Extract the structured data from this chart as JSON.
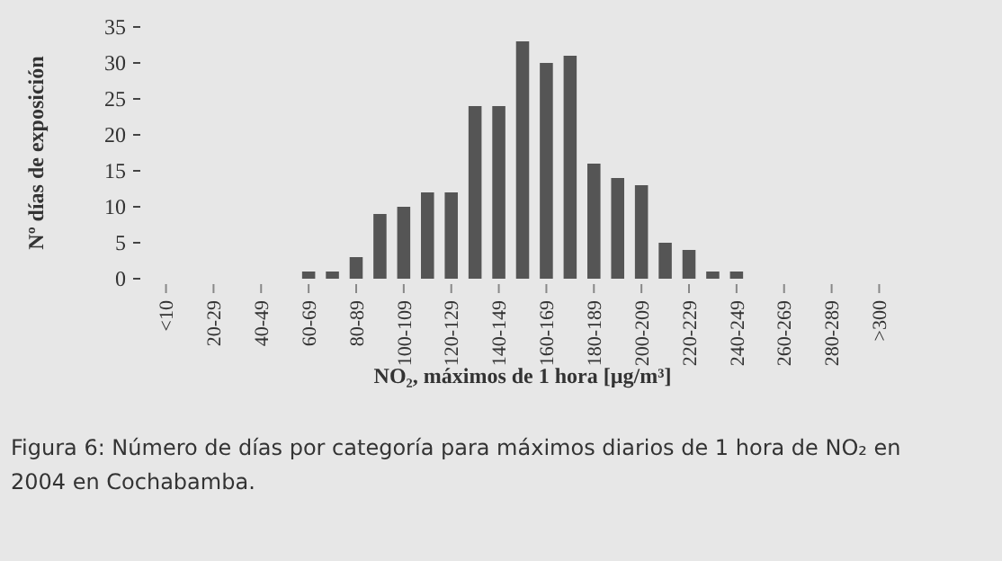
{
  "chart_data": {
    "type": "bar",
    "xlabel": "NO₂, máximos de 1 hora [µg/m³]",
    "ylabel": "Nº días de exposición",
    "categories": [
      "<10",
      null,
      "20-29",
      null,
      "40-49",
      null,
      "60-69",
      null,
      "80-89",
      null,
      "100-109",
      null,
      "120-129",
      null,
      "140-149",
      null,
      "160-169",
      null,
      "180-189",
      null,
      "200-209",
      null,
      "220-229",
      null,
      "240-249",
      null,
      "260-269",
      null,
      "280-289",
      null,
      ">300"
    ],
    "values": [
      0,
      0,
      0,
      0,
      0,
      0,
      1,
      1,
      3,
      9,
      10,
      12,
      12,
      24,
      24,
      33,
      30,
      31,
      16,
      14,
      13,
      5,
      4,
      1,
      1,
      0,
      0,
      0,
      0,
      0,
      0
    ],
    "color": "#555555",
    "ylim": [
      0,
      35
    ],
    "yticks": [
      0,
      5,
      10,
      15,
      20,
      25,
      30,
      35
    ],
    "grid": false,
    "annotations": [
      "Figura 6: Número de días por categoría para máximos diarios de 1 hora de NO₂ en 2004 en Cochabamba."
    ]
  }
}
